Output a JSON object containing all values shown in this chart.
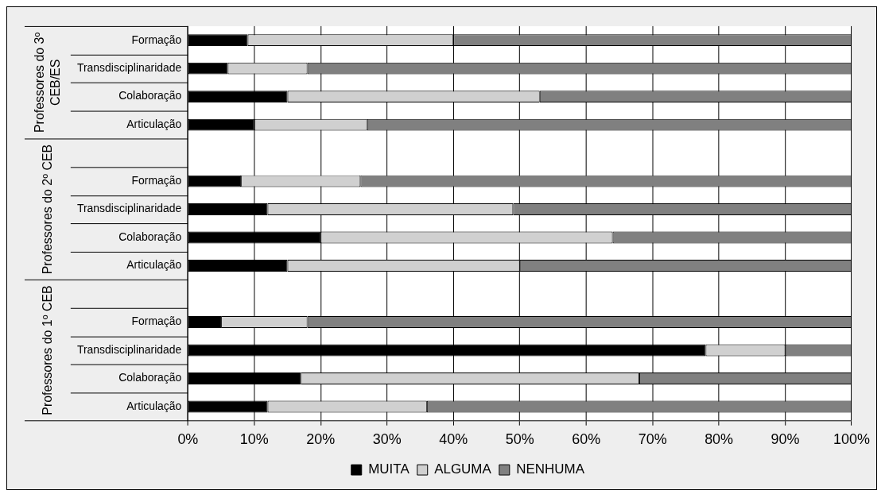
{
  "chart_data": {
    "type": "bar",
    "orientation": "horizontal",
    "stacked": true,
    "categories": [
      "Formação",
      "Transdisciplinaridade",
      "Colaboração",
      "Articulação",
      null,
      "Formação",
      "Transdisciplinaridade",
      "Colaboração",
      "Articulação",
      null,
      "Formação",
      "Transdisciplinaridade",
      "Colaboração",
      "Articulação"
    ],
    "series": [
      {
        "name": "MUITA",
        "color": "#000000",
        "values": [
          9,
          6,
          15,
          10,
          null,
          8,
          12,
          20,
          15,
          null,
          5,
          78,
          17,
          12
        ]
      },
      {
        "name": "ALGUMA",
        "color": "#d0d0d0",
        "values": [
          31,
          12,
          38,
          17,
          null,
          18,
          37,
          44,
          35,
          null,
          13,
          12,
          51,
          24
        ]
      },
      {
        "name": "NENHUMA",
        "color": "#808080",
        "values": [
          60,
          82,
          47,
          73,
          null,
          74,
          51,
          36,
          50,
          null,
          82,
          10,
          32,
          64
        ]
      }
    ],
    "xlim": [
      0,
      100
    ],
    "xticks": [
      {
        "value": 0,
        "label": "0%"
      },
      {
        "value": 10,
        "label": "10%"
      },
      {
        "value": 20,
        "label": "20%"
      },
      {
        "value": 30,
        "label": "30%"
      },
      {
        "value": 40,
        "label": "40%"
      },
      {
        "value": 50,
        "label": "50%"
      },
      {
        "value": 60,
        "label": "60%"
      },
      {
        "value": 70,
        "label": "70%"
      },
      {
        "value": 80,
        "label": "80%"
      },
      {
        "value": 90,
        "label": "90%"
      },
      {
        "value": 100,
        "label": "100%"
      }
    ],
    "annotations": [
      "Professores do 3º CEB/ES",
      "Professores do 2º CEB",
      "Professores do 1º CEB"
    ],
    "grid": "x",
    "legend": "bottom"
  }
}
